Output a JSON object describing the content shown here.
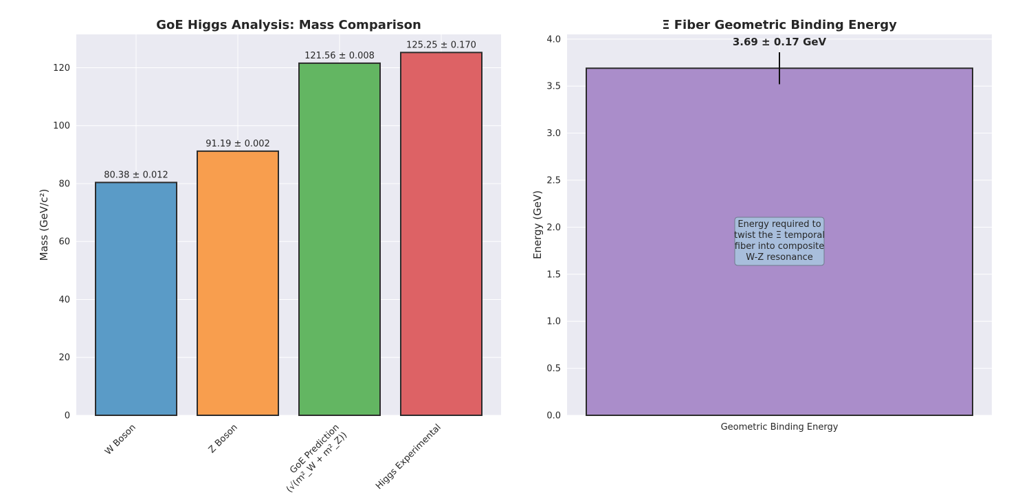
{
  "chart_data": [
    {
      "type": "bar",
      "title": "GoE Higgs Analysis: Mass Comparison",
      "xlabel": "",
      "ylabel": "Mass (GeV/c²)",
      "ylim": [
        0,
        131.5
      ],
      "yticks": [
        0,
        20,
        40,
        60,
        80,
        100,
        120
      ],
      "categories": [
        "W Boson",
        "Z Boson",
        "GoE Prediction\n(√(m²_W + m²_Z))",
        "Higgs Experimental"
      ],
      "values": [
        80.38,
        91.19,
        121.56,
        125.25
      ],
      "errors": [
        0.012,
        0.002,
        0.008,
        0.17
      ],
      "data_labels": [
        "80.38 ± 0.012",
        "91.19 ± 0.002",
        "121.56 ± 0.008",
        "125.25 ± 0.170"
      ],
      "colors": [
        "#5a9bc7",
        "#f89e4e",
        "#63b662",
        "#dd6265"
      ],
      "grid": true
    },
    {
      "type": "bar",
      "title": "Ξ Fiber Geometric Binding Energy",
      "xlabel": "",
      "ylabel": "Energy (GeV)",
      "ylim": [
        0,
        4.05
      ],
      "yticks": [
        0.0,
        0.5,
        1.0,
        1.5,
        2.0,
        2.5,
        3.0,
        3.5,
        4.0
      ],
      "categories": [
        "Geometric Binding Energy"
      ],
      "values": [
        3.69
      ],
      "errors": [
        0.17
      ],
      "data_labels": [
        "3.69 ± 0.17 GeV"
      ],
      "colors": [
        "#aa8dca"
      ],
      "annotation": "Energy required to\ntwist the Ξ temporal\nfiber into composite\nW-Z resonance",
      "grid": true
    }
  ]
}
